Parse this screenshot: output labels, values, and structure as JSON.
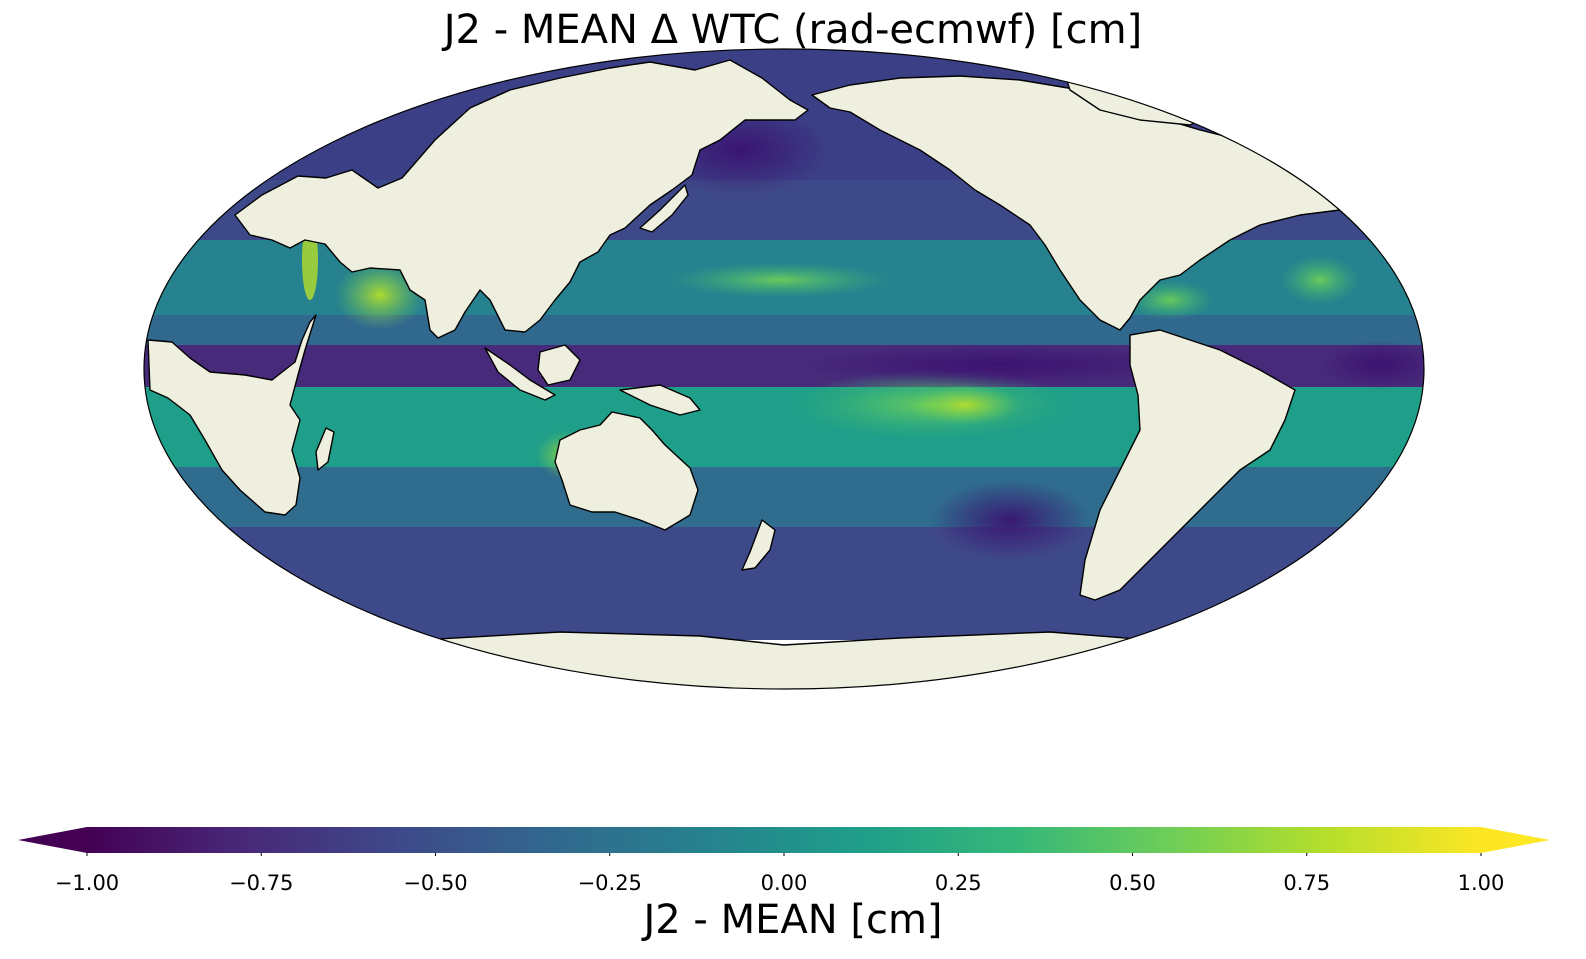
{
  "title": "J2 - MEAN Δ WTC (rad-ecmwf) [cm]",
  "map": {
    "projection": "mollweide",
    "central_longitude": 180,
    "land_color": "#efefdf",
    "coastline_color": "#000000",
    "missing_value_area": "south of about 60°S (left blank/white)",
    "regions": [
      {
        "name": "equatorial-pacific-cold-tongue",
        "value": -0.85
      },
      {
        "name": "equatorial-atlantic",
        "value": -0.85
      },
      {
        "name": "southeast-pacific-warm-band",
        "value": 0.6
      },
      {
        "name": "north-pacific-subtropical-band",
        "value": 0.35
      },
      {
        "name": "north-atlantic-subtropical-band",
        "value": 0.3
      },
      {
        "name": "arabian-sea",
        "value": 0.8
      },
      {
        "name": "red-sea",
        "value": 0.7
      },
      {
        "name": "northwest-australia",
        "value": 0.8
      },
      {
        "name": "caribbean",
        "value": 0.55
      },
      {
        "name": "north-pacific-high-latitudes",
        "value": -0.6
      },
      {
        "name": "southern-ocean",
        "value": -0.5
      },
      {
        "name": "indian-ocean-south-band",
        "value": 0.2
      }
    ]
  },
  "colorbar": {
    "colormap": "viridis",
    "min": -1.0,
    "max": 1.0,
    "extend": "both",
    "stops": [
      "#440154",
      "#482878",
      "#3e4989",
      "#31688e",
      "#26828e",
      "#1f9e89",
      "#35b779",
      "#6ece58",
      "#b5de2b",
      "#fde725"
    ],
    "ticks": [
      {
        "value": -1.0,
        "label": "−1.00"
      },
      {
        "value": -0.75,
        "label": "−0.75"
      },
      {
        "value": -0.5,
        "label": "−0.50"
      },
      {
        "value": -0.25,
        "label": "−0.25"
      },
      {
        "value": 0.0,
        "label": "0.00"
      },
      {
        "value": 0.25,
        "label": "0.25"
      },
      {
        "value": 0.5,
        "label": "0.50"
      },
      {
        "value": 0.75,
        "label": "0.75"
      },
      {
        "value": 1.0,
        "label": "1.00"
      }
    ],
    "label": "J2 - MEAN [cm]"
  }
}
